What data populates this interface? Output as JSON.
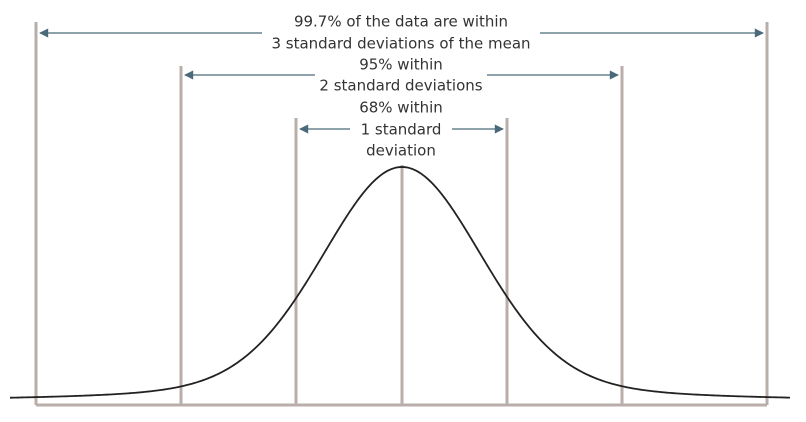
{
  "annotations": [
    {
      "lines": [
        "99.7% of the data are within",
        "3 standard deviations of the mean"
      ]
    },
    {
      "lines": [
        "95% within",
        "2 standard deviations"
      ]
    },
    {
      "lines": [
        "68% within",
        "1 standard",
        "deviation"
      ]
    }
  ]
}
